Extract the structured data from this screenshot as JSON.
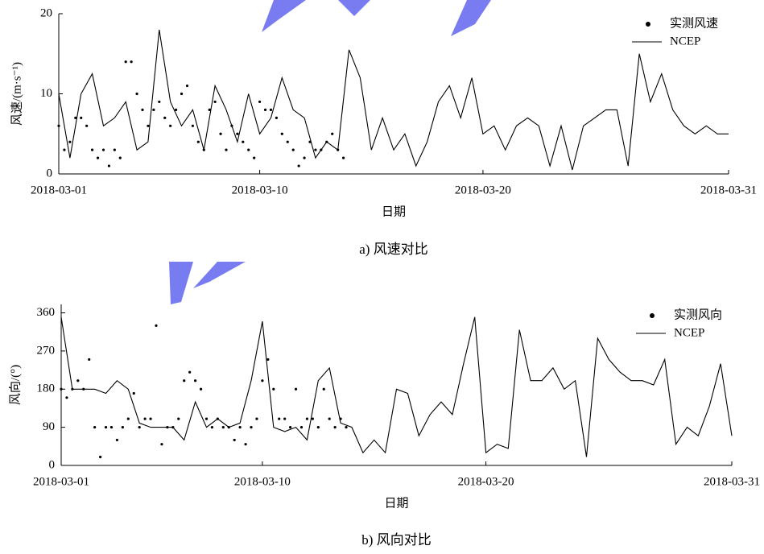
{
  "chart_data": [
    {
      "type": "line",
      "y_label": "风速/(m·s⁻¹)",
      "x_label": "日期",
      "caption": "a) 风速对比",
      "xlim": [
        0,
        30
      ],
      "xticks": [
        {
          "value": 0,
          "label": "2018-03-01"
        },
        {
          "value": 9,
          "label": "2018-03-10"
        },
        {
          "value": 19,
          "label": "2018-03-20"
        },
        {
          "value": 30,
          "label": "2018-03-31"
        }
      ],
      "ylim": [
        0,
        20
      ],
      "yticks": [
        0,
        10,
        20
      ],
      "series": [
        {
          "name": "实测风速",
          "mark": "dot",
          "color": "#000000",
          "x": [
            0,
            0.25,
            0.5,
            0.75,
            1,
            1.25,
            1.5,
            1.75,
            2,
            2.25,
            2.5,
            2.75,
            3,
            3.25,
            3.5,
            3.75,
            4,
            4.25,
            4.5,
            4.75,
            5,
            5.25,
            5.5,
            5.75,
            6,
            6.25,
            6.5,
            6.75,
            7,
            7.25,
            7.5,
            7.75,
            8,
            8.25,
            8.5,
            8.75,
            9,
            9.25,
            9.5,
            9.75,
            10,
            10.25,
            10.5,
            10.75,
            11,
            11.25,
            11.5,
            11.75,
            12,
            12.25,
            12.5,
            12.75
          ],
          "values": [
            6,
            3,
            4,
            7,
            7,
            6,
            3,
            2,
            3,
            1,
            3,
            2,
            14,
            14,
            10,
            8,
            6,
            8,
            9,
            7,
            6,
            8,
            10,
            11,
            6,
            4,
            3,
            8,
            9,
            5,
            3,
            6,
            5,
            4,
            3,
            2,
            9,
            8,
            8,
            7,
            5,
            4,
            3,
            1,
            2,
            4,
            3,
            3,
            4,
            5,
            3,
            2
          ]
        },
        {
          "name": "NCEP",
          "mark": "line",
          "color": "#000000",
          "x": [
            0,
            0.5,
            1,
            1.5,
            2,
            2.5,
            3,
            3.5,
            4,
            4.5,
            5,
            5.5,
            6,
            6.5,
            7,
            7.5,
            8,
            8.5,
            9,
            9.5,
            10,
            10.5,
            11,
            11.5,
            12,
            12.5,
            13,
            13.5,
            14,
            14.5,
            15,
            15.5,
            16,
            16.5,
            17,
            17.5,
            18,
            18.5,
            19,
            19.5,
            20,
            20.5,
            21,
            21.5,
            22,
            22.5,
            23,
            23.5,
            24,
            24.5,
            25,
            25.5,
            26,
            26.5,
            27,
            27.5,
            28,
            28.5,
            29,
            29.5,
            30
          ],
          "values": [
            10,
            2,
            10,
            12.5,
            6,
            7,
            9,
            3,
            4,
            18,
            9,
            6,
            8,
            3,
            11,
            8,
            4,
            10,
            5,
            7,
            12,
            8,
            7,
            2,
            4,
            3,
            15.5,
            12,
            3,
            7,
            3,
            5,
            1,
            4,
            9,
            11,
            7,
            12,
            5,
            6,
            3,
            6,
            7,
            6,
            1,
            6,
            0.5,
            6,
            7,
            8,
            8,
            1,
            15,
            9,
            12.5,
            8,
            6,
            5,
            6,
            5,
            5
          ]
        }
      ]
    },
    {
      "type": "line",
      "y_label": "风向/(°)",
      "x_label": "日期",
      "caption": "b) 风向对比",
      "xlim": [
        0,
        30
      ],
      "xticks": [
        {
          "value": 0,
          "label": "2018-03-01"
        },
        {
          "value": 9,
          "label": "2018-03-10"
        },
        {
          "value": 19,
          "label": "2018-03-20"
        },
        {
          "value": 30,
          "label": "2018-03-31"
        }
      ],
      "ylim": [
        0,
        380
      ],
      "yticks": [
        0,
        90,
        180,
        270,
        360
      ],
      "series": [
        {
          "name": "实测风向",
          "mark": "dot",
          "color": "#000000",
          "x": [
            0,
            0.25,
            0.5,
            0.75,
            1,
            1.25,
            1.5,
            1.75,
            2,
            2.25,
            2.5,
            2.75,
            3,
            3.25,
            3.5,
            3.75,
            4,
            4.25,
            4.5,
            4.75,
            5,
            5.25,
            5.5,
            5.75,
            6,
            6.25,
            6.5,
            6.75,
            7,
            7.25,
            7.5,
            7.75,
            8,
            8.25,
            8.5,
            8.75,
            9,
            9.25,
            9.5,
            9.75,
            10,
            10.25,
            10.5,
            10.75,
            11,
            11.25,
            11.5,
            11.75,
            12,
            12.25,
            12.5,
            12.75
          ],
          "values": [
            180,
            160,
            180,
            200,
            180,
            250,
            90,
            20,
            90,
            90,
            60,
            90,
            110,
            170,
            90,
            110,
            110,
            330,
            50,
            90,
            90,
            110,
            200,
            220,
            200,
            180,
            110,
            90,
            110,
            90,
            90,
            60,
            90,
            50,
            90,
            110,
            200,
            250,
            180,
            110,
            110,
            90,
            180,
            90,
            110,
            110,
            90,
            180,
            110,
            90,
            110,
            90
          ]
        },
        {
          "name": "NCEP",
          "mark": "line",
          "color": "#000000",
          "x": [
            0,
            0.5,
            1,
            1.5,
            2,
            2.5,
            3,
            3.5,
            4,
            4.5,
            5,
            5.5,
            6,
            6.5,
            7,
            7.5,
            8,
            8.5,
            9,
            9.5,
            10,
            10.5,
            11,
            11.5,
            12,
            12.5,
            13,
            13.5,
            14,
            14.5,
            15,
            15.5,
            16,
            16.5,
            17,
            17.5,
            18,
            18.5,
            19,
            19.5,
            20,
            20.5,
            21,
            21.5,
            22,
            22.5,
            23,
            23.5,
            24,
            24.5,
            25,
            25.5,
            26,
            26.5,
            27,
            27.5,
            28,
            28.5,
            29,
            29.5,
            30
          ],
          "values": [
            350,
            180,
            180,
            180,
            170,
            200,
            180,
            100,
            90,
            90,
            90,
            60,
            150,
            90,
            110,
            90,
            100,
            200,
            340,
            90,
            80,
            90,
            60,
            200,
            230,
            100,
            90,
            30,
            60,
            30,
            180,
            170,
            70,
            120,
            150,
            120,
            240,
            350,
            30,
            50,
            40,
            320,
            200,
            200,
            230,
            180,
            200,
            20,
            300,
            250,
            220,
            200,
            200,
            190,
            250,
            50,
            90,
            70,
            140,
            240,
            70
          ]
        }
      ]
    }
  ]
}
